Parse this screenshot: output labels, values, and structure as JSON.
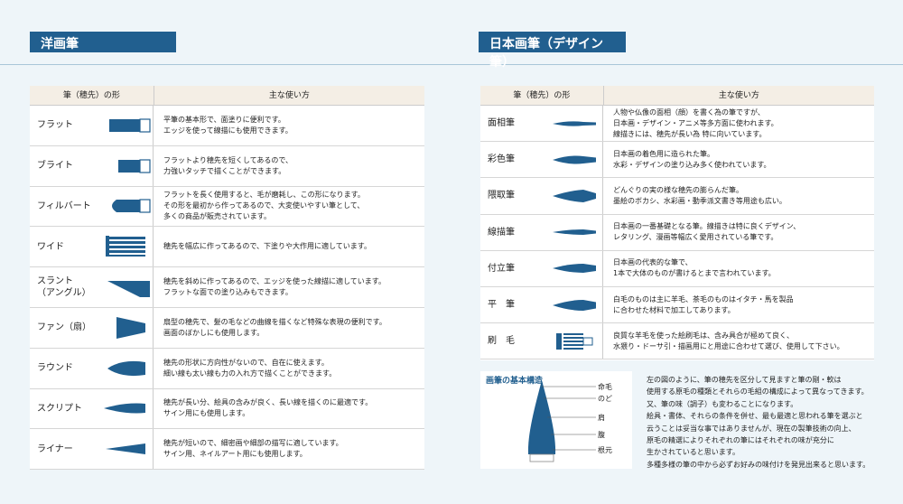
{
  "western": {
    "title": "洋画筆",
    "header": [
      "筆（穂先）の形",
      "主な使い方"
    ],
    "rows": [
      {
        "name": [
          "フラット"
        ],
        "desc": [
          "平筆の基本形で、面塗りに便利です。",
          "エッジを使って線描にも使用できます。"
        ]
      },
      {
        "name": [
          "ブライト"
        ],
        "desc": [
          "フラットより穂先を短くしてあるので、",
          "力強いタッチで描くことができます。"
        ]
      },
      {
        "name": [
          "フィルバート"
        ],
        "desc": [
          "フラットを長く使用すると、毛が磨耗し、この形になります。",
          "その形を最初から作ってあるので、大変使いやすい筆として、",
          "多くの商品が販売されています。"
        ]
      },
      {
        "name": [
          "ワイド"
        ],
        "desc": [
          "穂先を幅広に作ってあるので、下塗りや大作用に適しています。"
        ]
      },
      {
        "name": [
          "スラント",
          "（アングル）"
        ],
        "desc": [
          "穂先を斜めに作ってあるので、エッジを使った線描に適しています。",
          "フラットな面での塗り込みもできます。"
        ]
      },
      {
        "name": [
          "ファン（扇）"
        ],
        "desc": [
          "扇型の穂先で、髪の毛などの曲線を描くなど特殊な表現の便利です。",
          "画面のぼかしにも使用します。"
        ]
      },
      {
        "name": [
          "ラウンド"
        ],
        "desc": [
          "穂先の形状に方向性がないので、自在に使えます。",
          "細い線も太い線も力の入れ方で描くことができます。"
        ]
      },
      {
        "name": [
          "スクリプト"
        ],
        "desc": [
          "穂先が長い分、絵具の含みが良く、長い線を描くのに最適です。",
          "サイン用にも使用します。"
        ]
      },
      {
        "name": [
          "ライナー"
        ],
        "desc": [
          "穂先が短いので、細密画や細部の描写に適しています。",
          "サイン用、ネイルアート用にも使用します。"
        ]
      }
    ]
  },
  "japanese": {
    "title": "日本画筆（デザイン筆）",
    "header": [
      "筆（穂先）の形",
      "主な使い方"
    ],
    "rows": [
      {
        "name": [
          "面相筆"
        ],
        "desc": [
          "人物や仏像の面相（顔）を書く為の筆ですが、",
          "日本画・デザイン・アニメ等多方面に使われます。",
          "線描きには、穂先が長い為 特に向いています。"
        ]
      },
      {
        "name": [
          "彩色筆"
        ],
        "desc": [
          "日本画の着色用に造られた筆。",
          "水彩・デザインの塗り込み多く使われています。"
        ]
      },
      {
        "name": [
          "隈取筆"
        ],
        "desc": [
          "どんぐりの実の様な穂先の膨らんだ筆。",
          "墨絵のボカシ、水彩画・動季派文書き等用途も広い。"
        ]
      },
      {
        "name": [
          "線描筆"
        ],
        "desc": [
          "日本画の一番基礎となる筆。線描きは特に良くデザイン、",
          "レタリング、漫画等幅広く愛用されている筆です。"
        ]
      },
      {
        "name": [
          "付立筆"
        ],
        "desc": [
          "日本画の代表的な筆で、",
          "1本で大体のものが書けるとまで言われています。"
        ]
      },
      {
        "name": [
          "平　筆"
        ],
        "desc": [
          "白毛のものは主に羊毛、茶毛のものはイタチ・馬を製品",
          "に合わせた材料で加工してあります。"
        ]
      },
      {
        "name": [
          "刷　毛"
        ],
        "desc": [
          "良質な羊毛を使った絵刷毛は、含み具合が極めて良く、",
          "水猥り・ドーサ引・描画用にと用途に合わせて選び、使用して下さい。"
        ]
      }
    ]
  },
  "structure": {
    "title": "画筆の基本構造",
    "parts": [
      "命毛",
      "のど",
      "肩",
      "腹",
      "根元"
    ],
    "text": [
      "左の図のように、筆の穂先を区分して見ますと筆の剛・軟は",
      "使用する原毛の種類とそれらの毛組の構成によって異なってきます。",
      "又、筆の味（調子）も変わることになります。",
      "絵具・書体、それらの条件を併せ、最も最適と思われる筆を選ぶと",
      "云うことは妥当な事ではありませんが、現在の製筆技術の向上、",
      "原毛の精選によりそれぞれの筆にはそれぞれの味が充分に",
      "生かされていると思います。",
      "多種多様の筆の中から必ずお好みの味付けを発見出来ると思います。"
    ]
  }
}
